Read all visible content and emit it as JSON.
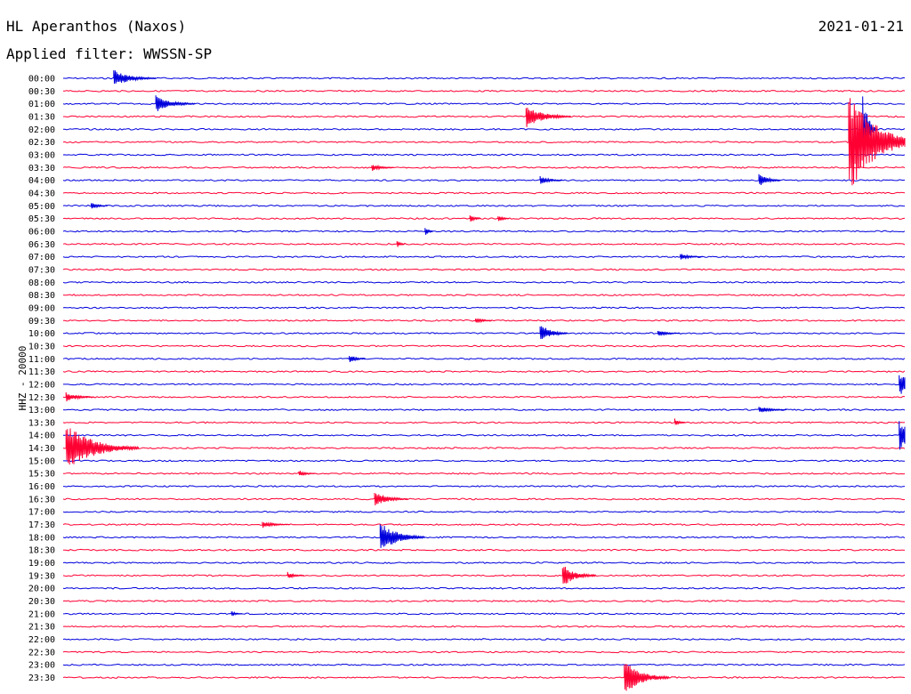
{
  "header": {
    "station": "HL Aperanthos (Naxos)",
    "date": "2021-01-21",
    "filter": "Applied filter: WWSSN-SP"
  },
  "channel_label": "HHZ - 20000",
  "colors": {
    "blue": "#0000dd",
    "red": "#ff0033"
  },
  "chart_data": {
    "type": "helicorder",
    "title": "HL Aperanthos (Naxos)",
    "date": "2021-01-21",
    "ylabel": "HHZ - 20000",
    "row_labels": [
      "00:00",
      "00:30",
      "01:00",
      "01:30",
      "02:00",
      "02:30",
      "03:00",
      "03:30",
      "04:00",
      "04:30",
      "05:00",
      "05:30",
      "06:00",
      "06:30",
      "07:00",
      "07:30",
      "08:00",
      "08:30",
      "09:00",
      "09:30",
      "10:00",
      "10:30",
      "11:00",
      "11:30",
      "12:00",
      "12:30",
      "13:00",
      "13:30",
      "14:00",
      "14:30",
      "15:00",
      "15:30",
      "16:00",
      "16:30",
      "17:00",
      "17:30",
      "18:00",
      "18:30",
      "19:00",
      "19:30",
      "20:00",
      "20:30",
      "21:00",
      "21:30",
      "22:00",
      "22:30",
      "23:00",
      "23:30"
    ],
    "row_colors": [
      "blue",
      "red"
    ],
    "events": [
      {
        "row": 0,
        "minute": 1.8,
        "amp": 10,
        "dur": 1.5
      },
      {
        "row": 2,
        "minute": 3.3,
        "amp": 10,
        "dur": 1.4
      },
      {
        "row": 3,
        "minute": 16.5,
        "amp": 13,
        "dur": 1.6
      },
      {
        "row": 4,
        "minute": 28.5,
        "amp": 45,
        "dur": 0.5
      },
      {
        "row": 5,
        "minute": 28.0,
        "amp": 60,
        "dur": 2.6
      },
      {
        "row": 7,
        "minute": 11.0,
        "amp": 4,
        "dur": 0.8
      },
      {
        "row": 8,
        "minute": 17.0,
        "amp": 5,
        "dur": 0.8
      },
      {
        "row": 8,
        "minute": 24.8,
        "amp": 8,
        "dur": 0.8
      },
      {
        "row": 10,
        "minute": 1.0,
        "amp": 4,
        "dur": 0.6
      },
      {
        "row": 11,
        "minute": 14.5,
        "amp": 5,
        "dur": 0.4
      },
      {
        "row": 11,
        "minute": 15.5,
        "amp": 5,
        "dur": 0.4
      },
      {
        "row": 12,
        "minute": 12.9,
        "amp": 6,
        "dur": 0.3
      },
      {
        "row": 13,
        "minute": 11.9,
        "amp": 5,
        "dur": 0.3
      },
      {
        "row": 14,
        "minute": 22.0,
        "amp": 4,
        "dur": 0.8
      },
      {
        "row": 19,
        "minute": 14.7,
        "amp": 4,
        "dur": 0.6
      },
      {
        "row": 20,
        "minute": 17.0,
        "amp": 11,
        "dur": 1.0
      },
      {
        "row": 20,
        "minute": 21.2,
        "amp": 4,
        "dur": 0.8
      },
      {
        "row": 22,
        "minute": 10.2,
        "amp": 5,
        "dur": 0.6
      },
      {
        "row": 24,
        "minute": 29.8,
        "amp": 13,
        "dur": 1.2
      },
      {
        "row": 25,
        "minute": 0.1,
        "amp": 6,
        "dur": 1.0
      },
      {
        "row": 26,
        "minute": 24.8,
        "amp": 4,
        "dur": 1.0
      },
      {
        "row": 27,
        "minute": 21.8,
        "amp": 5,
        "dur": 0.4
      },
      {
        "row": 28,
        "minute": 29.8,
        "amp": 18,
        "dur": 1.5
      },
      {
        "row": 29,
        "minute": 0.1,
        "amp": 28,
        "dur": 2.6
      },
      {
        "row": 31,
        "minute": 8.4,
        "amp": 4,
        "dur": 0.6
      },
      {
        "row": 33,
        "minute": 11.1,
        "amp": 9,
        "dur": 1.2
      },
      {
        "row": 35,
        "minute": 7.1,
        "amp": 4,
        "dur": 1.0
      },
      {
        "row": 36,
        "minute": 11.3,
        "amp": 18,
        "dur": 1.6
      },
      {
        "row": 39,
        "minute": 17.8,
        "amp": 13,
        "dur": 1.2
      },
      {
        "row": 39,
        "minute": 8.0,
        "amp": 4,
        "dur": 0.6
      },
      {
        "row": 42,
        "minute": 6.0,
        "amp": 3,
        "dur": 0.4
      },
      {
        "row": 47,
        "minute": 20.0,
        "amp": 20,
        "dur": 1.6
      }
    ]
  }
}
